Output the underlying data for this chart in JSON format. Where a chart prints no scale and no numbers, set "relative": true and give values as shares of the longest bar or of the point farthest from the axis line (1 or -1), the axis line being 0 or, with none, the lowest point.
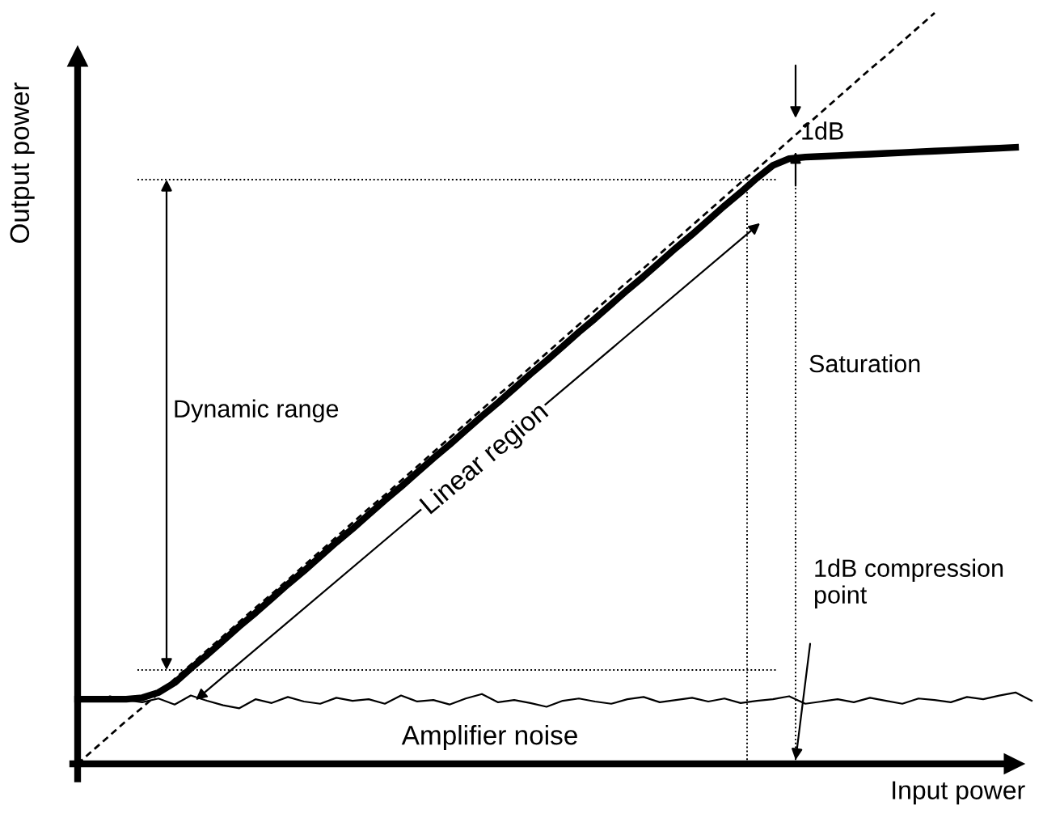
{
  "chart_data": {
    "type": "line",
    "relative": true,
    "xlabel": "Input power",
    "ylabel": "Output power",
    "categories": [
      null,
      null,
      null,
      null,
      null,
      null,
      null,
      null,
      null,
      null,
      null,
      null,
      null,
      null,
      null,
      null,
      null,
      null,
      null,
      null,
      null,
      null,
      null,
      null,
      null,
      null,
      null,
      null,
      null,
      null,
      null,
      null,
      null,
      null,
      null,
      null,
      null,
      null,
      null,
      null,
      null,
      null,
      null,
      null,
      null,
      null,
      null,
      null,
      null,
      null,
      null,
      null,
      null,
      null,
      null,
      null,
      null,
      null,
      null,
      null
    ],
    "series": [
      {
        "color": "#000000",
        "line_style": "dashed",
        "values": [
          0,
          0.019,
          0.038,
          0.057,
          0.075,
          0.094,
          0.113,
          0.132,
          0.151,
          0.17,
          0.189,
          0.208,
          0.226,
          0.245,
          0.264,
          0.283,
          0.302,
          0.321,
          0.34,
          0.358,
          0.377,
          0.396,
          0.415,
          0.434,
          0.453,
          0.472,
          0.491,
          0.509,
          0.528,
          0.547,
          0.566,
          0.585,
          0.604,
          0.623,
          0.642,
          0.66,
          0.679,
          0.698,
          0.717,
          0.736,
          0.755,
          0.774,
          0.792,
          0.811,
          0.83,
          0.849,
          0.868,
          0.887,
          0.906,
          0.925,
          0.943,
          0.962,
          0.981,
          1.0,
          null,
          null,
          null,
          null,
          null,
          null
        ]
      },
      {
        "color": "#000000",
        "line_style": "solid",
        "values": [
          0.086,
          0.086,
          0.086,
          0.086,
          0.088,
          0.095,
          0.108,
          0.127,
          0.145,
          0.164,
          0.183,
          0.201,
          0.22,
          0.239,
          0.257,
          0.276,
          0.295,
          0.313,
          0.332,
          0.351,
          0.369,
          0.388,
          0.407,
          0.425,
          0.444,
          0.463,
          0.481,
          0.5,
          0.519,
          0.537,
          0.556,
          0.575,
          0.593,
          0.612,
          0.631,
          0.649,
          0.668,
          0.687,
          0.705,
          0.724,
          0.743,
          0.761,
          0.78,
          0.797,
          0.806,
          0.808,
          0.809,
          0.81,
          0.811,
          0.812,
          0.813,
          0.814,
          0.815,
          0.816,
          0.817,
          0.818,
          0.819,
          0.82,
          0.821,
          null
        ]
      },
      {
        "color": "#000000",
        "line_style": "solid",
        "values": [
          0.088,
          0.083,
          0.09,
          0.085,
          0.082,
          0.087,
          0.079,
          0.091,
          0.084,
          0.078,
          0.074,
          0.086,
          0.081,
          0.089,
          0.083,
          0.08,
          0.088,
          0.084,
          0.086,
          0.08,
          0.091,
          0.083,
          0.085,
          0.079,
          0.087,
          0.093,
          0.082,
          0.085,
          0.081,
          0.076,
          0.084,
          0.087,
          0.083,
          0.08,
          0.086,
          0.089,
          0.082,
          0.085,
          0.088,
          0.083,
          0.087,
          0.081,
          0.084,
          0.086,
          0.09,
          0.08,
          0.083,
          0.086,
          0.082,
          0.088,
          0.084,
          0.08,
          0.087,
          0.085,
          0.082,
          0.089,
          0.086,
          0.091,
          0.095,
          0.084
        ]
      }
    ],
    "ref_lines": [
      {
        "axis": "y",
        "value": 0.778,
        "line_style": "dotted"
      },
      {
        "axis": "y",
        "value": 0.125,
        "line_style": "dotted"
      }
    ],
    "annotations": [
      "Dynamic range",
      "Linear region",
      "Saturation",
      "1dB",
      "1dB compression\npoint",
      "Amplifier noise"
    ]
  }
}
